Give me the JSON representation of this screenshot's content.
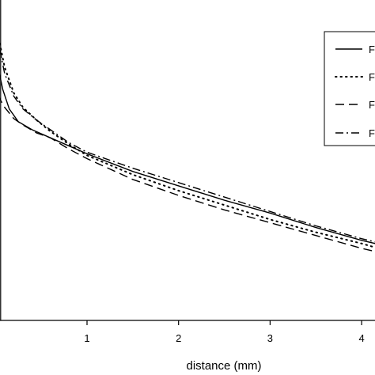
{
  "chart_data": {
    "type": "line",
    "title": "",
    "xlabel": "distance (mm)",
    "ylabel": "",
    "xlim": [
      -0.1,
      4.3
    ],
    "ylim": [
      0,
      1
    ],
    "grid": false,
    "legend": {
      "placement": "top-right",
      "entries": [
        "F",
        "F",
        "F",
        "F"
      ]
    },
    "xticks": [
      {
        "value": 1,
        "label": "1"
      },
      {
        "value": 2,
        "label": "2"
      },
      {
        "value": 3,
        "label": "3"
      },
      {
        "value": 4,
        "label": "4"
      }
    ],
    "series": [
      {
        "style": "solid",
        "x": [
          -0.08,
          -0.05,
          -0.02,
          0.02,
          0.08,
          0.15,
          0.25,
          0.4,
          0.6,
          0.8,
          1.0,
          1.5,
          2.0,
          2.5,
          3.0,
          3.5,
          4.0,
          4.3
        ],
        "y": [
          0.99,
          0.95,
          0.89,
          0.8,
          0.72,
          0.66,
          0.62,
          0.595,
          0.57,
          0.545,
          0.52,
          0.465,
          0.42,
          0.375,
          0.335,
          0.29,
          0.25,
          0.23
        ]
      },
      {
        "style": "dotted",
        "x": [
          -0.05,
          0.0,
          0.05,
          0.1,
          0.2,
          0.3,
          0.45,
          0.6,
          0.8,
          1.0,
          1.5,
          2.0,
          2.5,
          3.0,
          3.5,
          4.0,
          4.3
        ],
        "y": [
          0.99,
          0.93,
          0.86,
          0.79,
          0.71,
          0.665,
          0.625,
          0.59,
          0.55,
          0.515,
          0.455,
          0.405,
          0.36,
          0.315,
          0.275,
          0.24,
          0.215
        ]
      },
      {
        "style": "dashed",
        "x": [
          -0.1,
          -0.08,
          -0.04,
          0.0,
          0.05,
          0.1,
          0.2,
          0.3,
          0.45,
          0.6,
          0.8,
          1.0,
          1.5,
          2.0,
          2.5,
          3.0,
          3.5,
          4.0,
          4.3
        ],
        "y": [
          0.91,
          0.85,
          0.79,
          0.735,
          0.69,
          0.665,
          0.63,
          0.61,
          0.585,
          0.57,
          0.535,
          0.505,
          0.44,
          0.39,
          0.345,
          0.305,
          0.265,
          0.225,
          0.205
        ]
      },
      {
        "style": "dash-dot",
        "x": [
          -0.04,
          0.0,
          0.05,
          0.1,
          0.2,
          0.3,
          0.45,
          0.6,
          0.8,
          1.0,
          1.5,
          2.0,
          2.5,
          3.0,
          3.5,
          4.0,
          4.3
        ],
        "y": [
          0.99,
          0.92,
          0.84,
          0.77,
          0.7,
          0.66,
          0.625,
          0.595,
          0.555,
          0.525,
          0.475,
          0.43,
          0.385,
          0.34,
          0.295,
          0.255,
          0.235
        ]
      }
    ]
  }
}
